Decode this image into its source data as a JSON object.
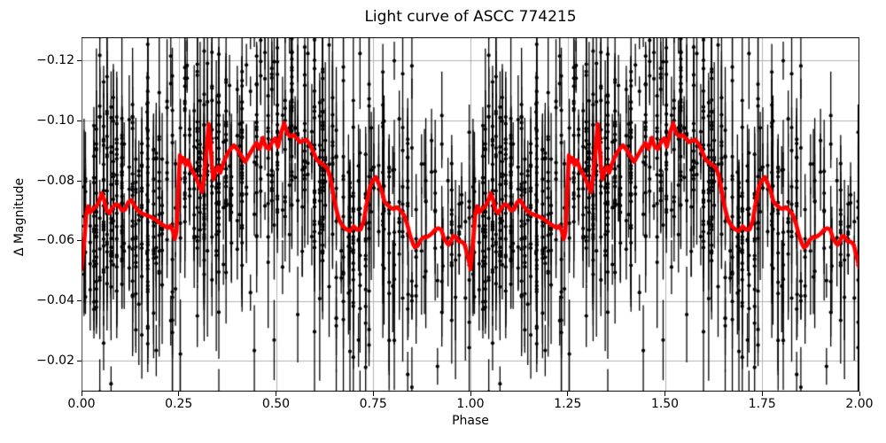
{
  "chart_data": {
    "type": "scatter",
    "title": "Light curve of ASCC 774215",
    "xlabel": "Phase",
    "ylabel": "Δ Magnitude",
    "xlim": [
      0,
      2
    ],
    "ylim": [
      -0.1278,
      -0.0098
    ],
    "y_axis_inverted": true,
    "grid": true,
    "grid_color": "#b0b0b0",
    "spine_color": "#000000",
    "background": "#ffffff",
    "legend": "none",
    "xtick_values": [
      0.0,
      0.25,
      0.5,
      0.75,
      1.0,
      1.25,
      1.5,
      1.75,
      2.0
    ],
    "xtick_labels": [
      "0.00",
      "0.25",
      "0.50",
      "0.75",
      "1.00",
      "1.25",
      "1.50",
      "1.75",
      "2.00"
    ],
    "ytick_values": [
      -0.12,
      -0.1,
      -0.08,
      -0.06,
      -0.04,
      -0.02
    ],
    "ytick_labels": [
      "−0.12",
      "−0.10",
      "−0.08",
      "−0.06",
      "−0.04",
      "−0.02"
    ],
    "series": [
      {
        "name": "observations",
        "type": "errorbar-scatter",
        "color": "#000000",
        "marker": "point",
        "marker_radius": 2.1,
        "errorbar_linewidth": 1.3,
        "note": "dense noisy photometric points with vertical error bars; phased data plotted twice (phase 0-1 repeated at 1-2); density is lower for phase 0.63-1.0 and the cloud follows the smoothed curve with large vertical scatter",
        "model": {
          "columns_per_period": 112,
          "points_per_column_max": 39,
          "column_sigma_mag_range": [
            0.014,
            0.03
          ],
          "errorbar_halflength_mag_range": [
            0.0045,
            0.022
          ],
          "seed": 7
        }
      },
      {
        "name": "smoothed light curve",
        "type": "line",
        "color": "#ff0000",
        "linewidth": 4.6,
        "periods_drawn": 2,
        "phase": [
          0.0,
          0.004,
          0.008,
          0.012,
          0.017,
          0.023,
          0.03,
          0.038,
          0.045,
          0.052,
          0.058,
          0.064,
          0.072,
          0.08,
          0.088,
          0.096,
          0.104,
          0.112,
          0.12,
          0.128,
          0.136,
          0.145,
          0.154,
          0.164,
          0.174,
          0.184,
          0.194,
          0.204,
          0.214,
          0.222,
          0.228,
          0.234,
          0.24,
          0.244,
          0.247,
          0.25,
          0.253,
          0.257,
          0.262,
          0.268,
          0.274,
          0.281,
          0.288,
          0.296,
          0.303,
          0.31,
          0.316,
          0.322,
          0.327,
          0.331,
          0.335,
          0.339,
          0.345,
          0.351,
          0.357,
          0.365,
          0.374,
          0.383,
          0.392,
          0.402,
          0.412,
          0.421,
          0.431,
          0.441,
          0.45,
          0.458,
          0.466,
          0.474,
          0.482,
          0.49,
          0.498,
          0.505,
          0.513,
          0.521,
          0.529,
          0.537,
          0.546,
          0.554,
          0.561,
          0.569,
          0.578,
          0.587,
          0.596,
          0.605,
          0.614,
          0.623,
          0.631,
          0.638,
          0.644,
          0.65,
          0.656,
          0.663,
          0.671,
          0.68,
          0.69,
          0.7,
          0.709,
          0.718,
          0.726,
          0.733,
          0.741,
          0.748,
          0.757,
          0.764,
          0.771,
          0.779,
          0.787,
          0.795,
          0.803,
          0.811,
          0.82,
          0.829,
          0.837,
          0.845,
          0.853,
          0.857,
          0.864,
          0.871,
          0.879,
          0.887,
          0.894,
          0.902,
          0.909,
          0.917,
          0.925,
          0.932,
          0.94,
          0.944,
          0.951,
          0.955,
          0.963,
          0.97,
          0.978,
          0.985,
          0.993,
          1.0
        ],
        "dmag": [
          -0.0505,
          -0.056,
          -0.0615,
          -0.0685,
          -0.0715,
          -0.0695,
          -0.0706,
          -0.0715,
          -0.0732,
          -0.0758,
          -0.0738,
          -0.0702,
          -0.0692,
          -0.0711,
          -0.0722,
          -0.0718,
          -0.0701,
          -0.0704,
          -0.0728,
          -0.0736,
          -0.0718,
          -0.0701,
          -0.0692,
          -0.0687,
          -0.0682,
          -0.0676,
          -0.0667,
          -0.0657,
          -0.0649,
          -0.0643,
          -0.065,
          -0.0636,
          -0.0606,
          -0.0628,
          -0.07,
          -0.08,
          -0.0885,
          -0.0862,
          -0.0876,
          -0.0852,
          -0.0868,
          -0.0842,
          -0.0826,
          -0.0806,
          -0.0782,
          -0.0763,
          -0.0822,
          -0.0908,
          -0.0989,
          -0.094,
          -0.0855,
          -0.0806,
          -0.0833,
          -0.0846,
          -0.0827,
          -0.0861,
          -0.0886,
          -0.0906,
          -0.0918,
          -0.0902,
          -0.0881,
          -0.0863,
          -0.0886,
          -0.0909,
          -0.0926,
          -0.0906,
          -0.0943,
          -0.0913,
          -0.0906,
          -0.0929,
          -0.0941,
          -0.0913,
          -0.0959,
          -0.0992,
          -0.0958,
          -0.0948,
          -0.0952,
          -0.0941,
          -0.0929,
          -0.0933,
          -0.0937,
          -0.0921,
          -0.0896,
          -0.0869,
          -0.086,
          -0.0852,
          -0.0843,
          -0.082,
          -0.0778,
          -0.0736,
          -0.07,
          -0.0667,
          -0.065,
          -0.0639,
          -0.0633,
          -0.0648,
          -0.0637,
          -0.0638,
          -0.0668,
          -0.0724,
          -0.0776,
          -0.0799,
          -0.0812,
          -0.079,
          -0.077,
          -0.0731,
          -0.0719,
          -0.071,
          -0.0706,
          -0.0712,
          -0.0701,
          -0.0686,
          -0.0657,
          -0.0617,
          -0.0588,
          -0.0578,
          -0.0583,
          -0.0601,
          -0.0612,
          -0.0612,
          -0.0617,
          -0.0626,
          -0.0637,
          -0.0642,
          -0.0637,
          -0.0608,
          -0.0592,
          -0.0587,
          -0.0601,
          -0.0616,
          -0.0612,
          -0.0598,
          -0.0597,
          -0.0588,
          -0.0548,
          -0.051
        ]
      }
    ]
  }
}
